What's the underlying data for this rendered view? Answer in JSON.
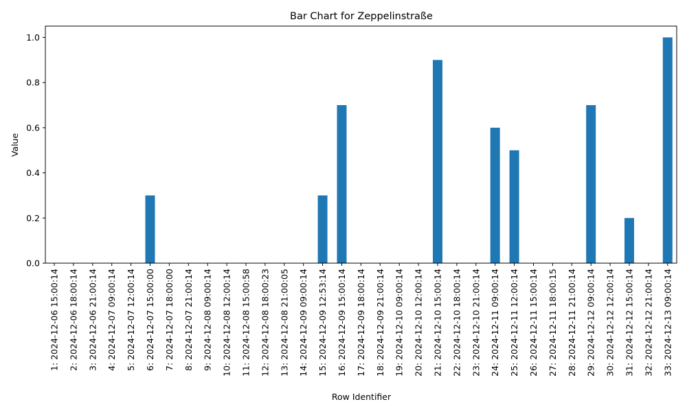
{
  "chart_data": {
    "type": "bar",
    "title": "Bar Chart for Zeppelinstraße",
    "xlabel": "Row Identifier",
    "ylabel": "Value",
    "ylim": [
      0,
      1.05
    ],
    "yticks": [
      "0.0",
      "0.2",
      "0.4",
      "0.6",
      "0.8",
      "1.0"
    ],
    "grid": false,
    "bar_color": "#1f77b4",
    "categories": [
      "1: 2024-12-06 15:00:14",
      "2: 2024-12-06 18:00:14",
      "3: 2024-12-06 21:00:14",
      "4: 2024-12-07 09:00:14",
      "5: 2024-12-07 12:00:14",
      "6: 2024-12-07 15:00:00",
      "7: 2024-12-07 18:00:00",
      "8: 2024-12-07 21:00:14",
      "9: 2024-12-08 09:00:14",
      "10: 2024-12-08 12:00:14",
      "11: 2024-12-08 15:00:58",
      "12: 2024-12-08 18:00:23",
      "13: 2024-12-08 21:00:05",
      "14: 2024-12-09 09:00:14",
      "15: 2024-12-09 12:53:14",
      "16: 2024-12-09 15:00:14",
      "17: 2024-12-09 18:00:14",
      "18: 2024-12-09 21:00:14",
      "19: 2024-12-10 09:00:14",
      "20: 2024-12-10 12:00:14",
      "21: 2024-12-10 15:00:14",
      "22: 2024-12-10 18:00:14",
      "23: 2024-12-10 21:00:14",
      "24: 2024-12-11 09:00:14",
      "25: 2024-12-11 12:00:14",
      "26: 2024-12-11 15:00:14",
      "27: 2024-12-11 18:00:15",
      "28: 2024-12-11 21:00:14",
      "29: 2024-12-12 09:00:14",
      "30: 2024-12-12 12:00:14",
      "31: 2024-12-12 15:00:14",
      "32: 2024-12-12 21:00:14",
      "33: 2024-12-13 09:00:14"
    ],
    "values": [
      0,
      0,
      0,
      0,
      0,
      0.3,
      0,
      0,
      0,
      0,
      0,
      0,
      0,
      0,
      0.3,
      0.7,
      0,
      0,
      0,
      0,
      0.9,
      0,
      0,
      0.6,
      0.5,
      0,
      0,
      0,
      0.7,
      0,
      0.2,
      0,
      1.0
    ]
  }
}
